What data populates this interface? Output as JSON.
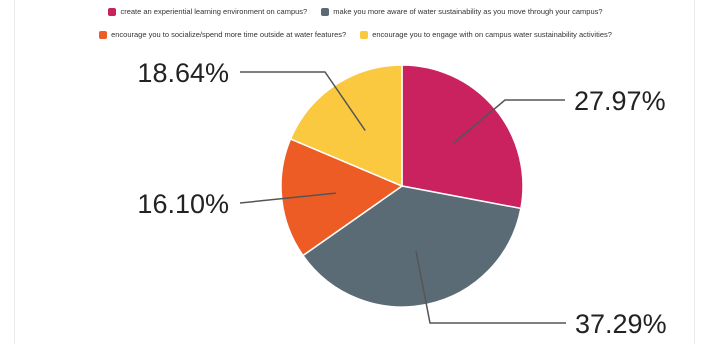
{
  "chart_data": {
    "type": "pie",
    "title": "",
    "legend_position": "top",
    "series": [
      {
        "name": "create an experiential learning environment on campus?",
        "value": 27.97,
        "label": "27.97%",
        "color": "#c9225f"
      },
      {
        "name": "make you more aware of water sustainability as you move through your campus?",
        "value": 37.29,
        "label": "37.29%",
        "color": "#5b6b75"
      },
      {
        "name": "encourage you to socialize/spend more time outside at water features?",
        "value": 16.1,
        "label": "16.10%",
        "color": "#ec5c24"
      },
      {
        "name": "encourage you to engage with on campus water sustainability activities?",
        "value": 18.64,
        "label": "18.64%",
        "color": "#fbc93f"
      }
    ]
  }
}
